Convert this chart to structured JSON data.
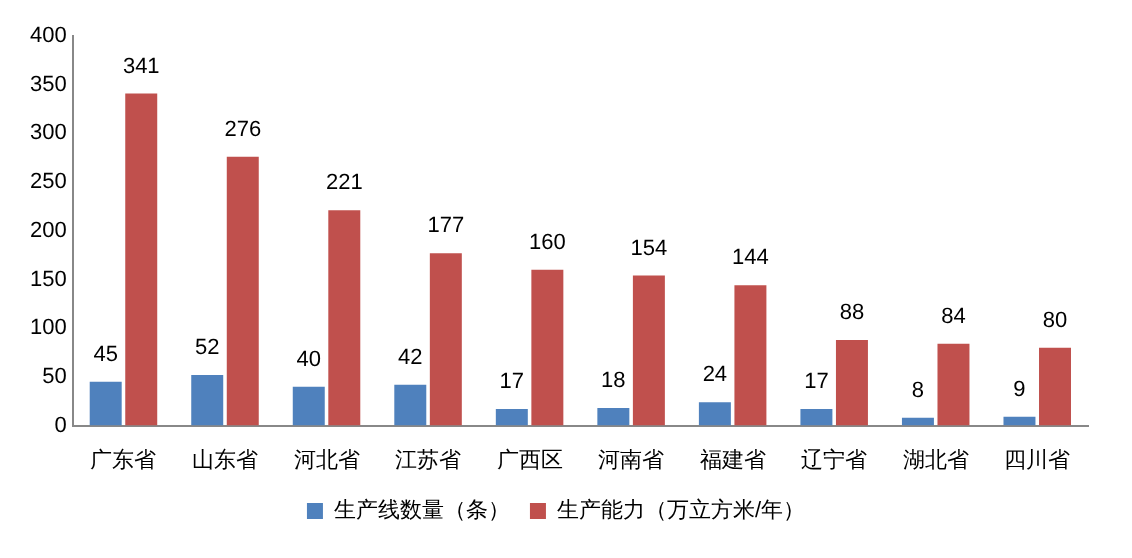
{
  "chart_data": {
    "type": "bar",
    "categories": [
      "广东省",
      "山东省",
      "河北省",
      "江苏省",
      "广西区",
      "河南省",
      "福建省",
      "辽宁省",
      "湖北省",
      "四川省"
    ],
    "series": [
      {
        "name": "生产线数量（条）",
        "color": "#4f81bd",
        "values": [
          45,
          52,
          40,
          42,
          17,
          18,
          24,
          17,
          8,
          9
        ]
      },
      {
        "name": "生产能力（万立方米/年）",
        "color": "#c0504d",
        "values": [
          341,
          276,
          221,
          177,
          160,
          154,
          144,
          88,
          84,
          80
        ]
      }
    ],
    "ylim": [
      0,
      400
    ],
    "yticks": [
      0,
      50,
      100,
      150,
      200,
      250,
      300,
      350,
      400
    ],
    "grid": false,
    "legend": "bottom",
    "data_labels": true
  }
}
